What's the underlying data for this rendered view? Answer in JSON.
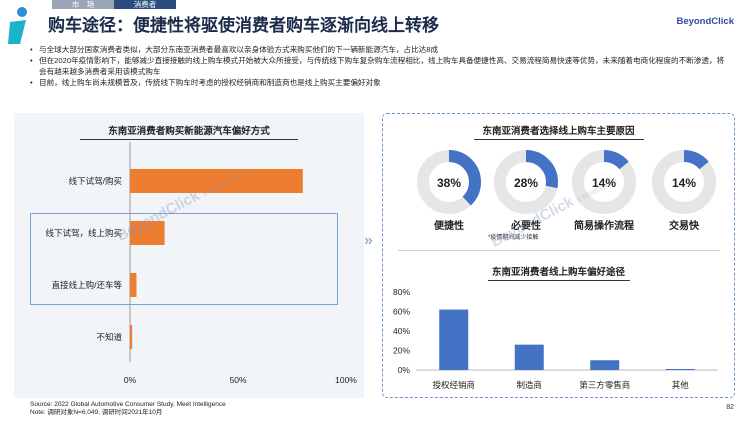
{
  "header": {
    "tabs": [
      "市　场",
      "消费者"
    ],
    "title": "购车途径：便捷性将驱使消费者购车逐渐向线上转移",
    "brand": "BeyondClick"
  },
  "bullets": [
    "与全球大部分国家消费者类似，大部分东南亚消费者最喜欢以亲身体验方式来购买他们的下一辆新能源汽车，占比达8成",
    "但在2020年疫情影响下，能够减少直接接触的线上购车模式开始被大众所接受，与传统线下购车复杂购车流程相比，线上购车具备便捷性高、交易流程简易快速等优势，未来随着电商化程度的不断渗透，将会有越来越多消费者采用该模式购车",
    "目前，线上购车尚未规模普及，传统线下购车时考虑的授权经销商和制造商也是线上购买主要偏好对象"
  ],
  "watermark": {
    "brand": "BeyondClick",
    "sub": "x Meetsocial"
  },
  "charts": {
    "left_title": "东南亚消费者购买新能源汽车偏好方式",
    "reasons_title": "东南亚消费者选择线上购车主要原因",
    "channel_title": "东南亚消费者线上购车偏好途径",
    "reasons_note": "*疫情期间减少接触"
  },
  "chart_data": [
    {
      "type": "bar",
      "orientation": "horizontal",
      "title": "东南亚消费者购买新能源汽车偏好方式",
      "categories": [
        "线下试驾/购买",
        "线下试驾，线上购买",
        "直接线上购/还车等",
        "不知道"
      ],
      "values": [
        80,
        16,
        3,
        1
      ],
      "xlim": [
        0,
        100
      ],
      "xticks": [
        "0%",
        "50%",
        "100%"
      ],
      "color": "#ed7d31"
    },
    {
      "type": "pie",
      "title": "东南亚消费者选择线上购车主要原因",
      "style": "donut",
      "categories": [
        "便捷性",
        "必要性",
        "简易操作流程",
        "交易快"
      ],
      "values": [
        38,
        28,
        14,
        14
      ],
      "labels": [
        "38%",
        "28%",
        "14%",
        "14%"
      ],
      "color": "#4472c4"
    },
    {
      "type": "bar",
      "title": "东南亚消费者线上购车偏好途径",
      "categories": [
        "授权经销商",
        "制造商",
        "第三方零售商",
        "其他"
      ],
      "values": [
        62,
        26,
        10,
        1
      ],
      "ylim": [
        0,
        80
      ],
      "yticks": [
        "0%",
        "20%",
        "40%",
        "60%",
        "80%"
      ],
      "color": "#4472c4"
    }
  ],
  "footer": {
    "source": "Source: 2022 Global Automotive Consumer Study, Meet Intelligence",
    "note": "Note: 调研对象N=6,049, 调研时间2021年10月",
    "page": "82"
  },
  "colors": {
    "orange": "#ed7d31",
    "blue": "#4472c4",
    "ring": "#e6e6e6",
    "brand": "#2b4c9e"
  }
}
